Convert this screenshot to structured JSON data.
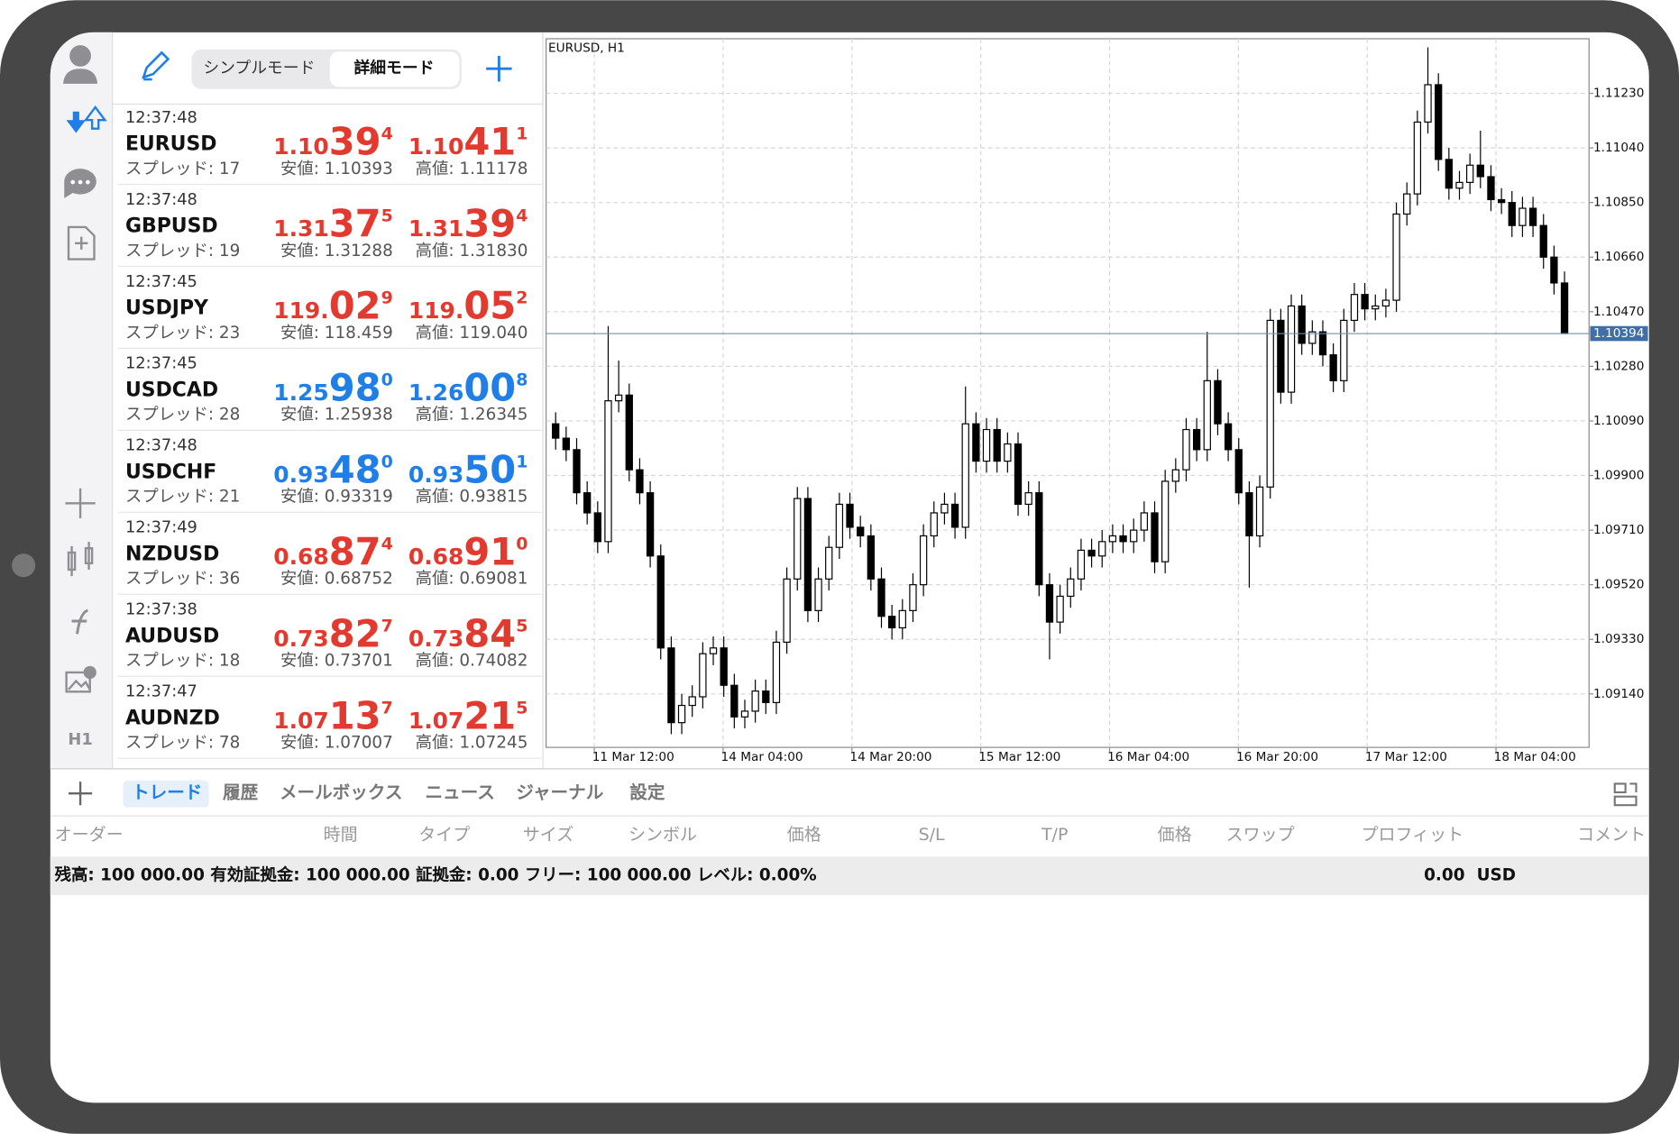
{
  "toolbar": {
    "modes": [
      "シンプルモード",
      "詳細モード"
    ]
  },
  "sidebar": {
    "timeframe": "H1"
  },
  "quotes": [
    {
      "time": "12:37:48",
      "symbol": "EURUSD",
      "spread": "スプレッド: 17",
      "bid": {
        "prefix": "1.10",
        "big": "39",
        "sup": "4"
      },
      "ask": {
        "prefix": "1.10",
        "big": "41",
        "sup": "1"
      },
      "low": "安値: 1.10393",
      "high": "高値: 1.11178",
      "color": "#e23a2e"
    },
    {
      "time": "12:37:48",
      "symbol": "GBPUSD",
      "spread": "スプレッド: 19",
      "bid": {
        "prefix": "1.31",
        "big": "37",
        "sup": "5"
      },
      "ask": {
        "prefix": "1.31",
        "big": "39",
        "sup": "4"
      },
      "low": "安値: 1.31288",
      "high": "高値: 1.31830",
      "color": "#e23a2e"
    },
    {
      "time": "12:37:45",
      "symbol": "USDJPY",
      "spread": "スプレッド: 23",
      "bid": {
        "prefix": "119.",
        "big": "02",
        "sup": "9"
      },
      "ask": {
        "prefix": "119.",
        "big": "05",
        "sup": "2"
      },
      "low": "安値: 118.459",
      "high": "高値: 119.040",
      "color": "#e23a2e"
    },
    {
      "time": "12:37:45",
      "symbol": "USDCAD",
      "spread": "スプレッド: 28",
      "bid": {
        "prefix": "1.25",
        "big": "98",
        "sup": "0"
      },
      "ask": {
        "prefix": "1.26",
        "big": "00",
        "sup": "8"
      },
      "low": "安値: 1.25938",
      "high": "高値: 1.26345",
      "color": "#1f7fe6"
    },
    {
      "time": "12:37:48",
      "symbol": "USDCHF",
      "spread": "スプレッド: 21",
      "bid": {
        "prefix": "0.93",
        "big": "48",
        "sup": "0"
      },
      "ask": {
        "prefix": "0.93",
        "big": "50",
        "sup": "1"
      },
      "low": "安値: 0.93319",
      "high": "高値: 0.93815",
      "color": "#1f7fe6"
    },
    {
      "time": "12:37:49",
      "symbol": "NZDUSD",
      "spread": "スプレッド: 36",
      "bid": {
        "prefix": "0.68",
        "big": "87",
        "sup": "4"
      },
      "ask": {
        "prefix": "0.68",
        "big": "91",
        "sup": "0"
      },
      "low": "安値: 0.68752",
      "high": "高値: 0.69081",
      "color": "#e23a2e"
    },
    {
      "time": "12:37:38",
      "symbol": "AUDUSD",
      "spread": "スプレッド: 18",
      "bid": {
        "prefix": "0.73",
        "big": "82",
        "sup": "7"
      },
      "ask": {
        "prefix": "0.73",
        "big": "84",
        "sup": "5"
      },
      "low": "安値: 0.73701",
      "high": "高値: 0.74082",
      "color": "#e23a2e"
    },
    {
      "time": "12:37:47",
      "symbol": "AUDNZD",
      "spread": "スプレッド: 78",
      "bid": {
        "prefix": "1.07",
        "big": "13",
        "sup": "7"
      },
      "ask": {
        "prefix": "1.07",
        "big": "21",
        "sup": "5"
      },
      "low": "安値: 1.07007",
      "high": "高値: 1.07245",
      "color": "#e23a2e"
    }
  ],
  "chart_data": {
    "type": "candlestick",
    "title": "EURUSD, H1",
    "up_color": "#ffffff",
    "down_color": "#000000",
    "grid": true,
    "ylim": [
      1.08954,
      1.1142
    ],
    "yticks": [
      {
        "value": 1.1123,
        "label": "1.11230"
      },
      {
        "value": 1.1104,
        "label": "1.11040"
      },
      {
        "value": 1.1085,
        "label": "1.10850"
      },
      {
        "value": 1.1066,
        "label": "1.10660"
      },
      {
        "value": 1.1047,
        "label": "1.10470"
      },
      {
        "value": 1.1028,
        "label": "1.10280"
      },
      {
        "value": 1.1009,
        "label": "1.10090"
      },
      {
        "value": 1.099,
        "label": "1.09900"
      },
      {
        "value": 1.0971,
        "label": "1.09710"
      },
      {
        "value": 1.0952,
        "label": "1.09520"
      },
      {
        "value": 1.0933,
        "label": "1.09330"
      },
      {
        "value": 1.0914,
        "label": "1.09140"
      }
    ],
    "xtick_labels": [
      "11 Mar 12:00",
      "14 Mar 04:00",
      "14 Mar 20:00",
      "15 Mar 12:00",
      "16 Mar 04:00",
      "16 Mar 20:00",
      "17 Mar 12:00",
      "18 Mar 04:00"
    ],
    "last_price": 1.10394,
    "ohlc": [
      [
        1.1008,
        1.1012,
        1.0999,
        1.1003
      ],
      [
        1.1003,
        1.1007,
        1.0995,
        1.0999
      ],
      [
        1.0999,
        1.1003,
        1.098,
        1.0984
      ],
      [
        1.0984,
        1.0988,
        1.0973,
        1.0977
      ],
      [
        1.0977,
        1.0981,
        1.0963,
        1.0967
      ],
      [
        1.0967,
        1.1042,
        1.0963,
        1.1016
      ],
      [
        1.1016,
        1.103,
        1.1012,
        1.1018
      ],
      [
        1.1018,
        1.1022,
        1.0988,
        1.0992
      ],
      [
        1.0992,
        1.0996,
        1.098,
        1.0984
      ],
      [
        1.0984,
        1.0988,
        1.0958,
        1.0962
      ],
      [
        1.0962,
        1.0966,
        1.0926,
        1.093
      ],
      [
        1.093,
        1.0934,
        1.09,
        1.0904
      ],
      [
        1.0904,
        1.0914,
        1.09,
        1.091
      ],
      [
        1.091,
        1.0917,
        1.0906,
        1.0913
      ],
      [
        1.0913,
        1.0932,
        1.0909,
        1.0928
      ],
      [
        1.0928,
        1.0934,
        1.0924,
        1.093
      ],
      [
        1.093,
        1.0934,
        1.0913,
        1.0917
      ],
      [
        1.0917,
        1.0921,
        1.0902,
        1.0906
      ],
      [
        1.0906,
        1.0912,
        1.0902,
        1.0908
      ],
      [
        1.0908,
        1.0919,
        1.0904,
        1.0915
      ],
      [
        1.0915,
        1.0919,
        1.0907,
        1.0911
      ],
      [
        1.0911,
        1.0936,
        1.0907,
        1.0932
      ],
      [
        1.0932,
        1.0958,
        1.0928,
        1.0954
      ],
      [
        1.0954,
        1.0986,
        1.095,
        1.0982
      ],
      [
        1.0982,
        1.0986,
        1.0939,
        1.0943
      ],
      [
        1.0943,
        1.0958,
        1.0939,
        1.0954
      ],
      [
        1.0954,
        1.0969,
        1.095,
        1.0965
      ],
      [
        1.0965,
        1.0984,
        1.0961,
        1.098
      ],
      [
        1.098,
        1.0984,
        1.0968,
        1.0972
      ],
      [
        1.0972,
        1.0976,
        1.0965,
        1.0969
      ],
      [
        1.0969,
        1.0973,
        1.095,
        1.0954
      ],
      [
        1.0954,
        1.0958,
        1.0937,
        1.0941
      ],
      [
        1.0941,
        1.0945,
        1.0933,
        1.0937
      ],
      [
        1.0937,
        1.0947,
        1.0933,
        1.0943
      ],
      [
        1.0943,
        1.0956,
        1.0939,
        1.0952
      ],
      [
        1.0952,
        1.0973,
        1.0948,
        1.0969
      ],
      [
        1.0969,
        1.0981,
        1.0965,
        1.0977
      ],
      [
        1.0977,
        1.0984,
        1.0973,
        1.098
      ],
      [
        1.098,
        1.0984,
        1.0968,
        1.0972
      ],
      [
        1.0972,
        1.1021,
        1.0968,
        1.1008
      ],
      [
        1.1008,
        1.1012,
        1.0991,
        1.0995
      ],
      [
        1.0995,
        1.101,
        1.0991,
        1.1006
      ],
      [
        1.1006,
        1.101,
        1.0991,
        1.0995
      ],
      [
        1.0995,
        1.1005,
        1.0991,
        1.1001
      ],
      [
        1.1001,
        1.1005,
        1.0976,
        1.098
      ],
      [
        1.098,
        1.0988,
        1.0976,
        1.0984
      ],
      [
        1.0984,
        1.0988,
        1.0948,
        1.0952
      ],
      [
        1.0952,
        1.0956,
        1.0926,
        1.0939
      ],
      [
        1.0939,
        1.0952,
        1.0935,
        1.0948
      ],
      [
        1.0948,
        1.0958,
        1.0944,
        1.0954
      ],
      [
        1.0954,
        1.0968,
        1.095,
        1.0964
      ],
      [
        1.0964,
        1.0968,
        1.0958,
        1.0962
      ],
      [
        1.0962,
        1.0971,
        1.0958,
        1.0967
      ],
      [
        1.0967,
        1.0973,
        1.0963,
        1.0969
      ],
      [
        1.0969,
        1.0973,
        1.0963,
        1.0967
      ],
      [
        1.0967,
        1.0975,
        1.0963,
        1.0971
      ],
      [
        1.0971,
        1.0981,
        1.0967,
        1.0977
      ],
      [
        1.0977,
        1.0981,
        1.0956,
        1.096
      ],
      [
        1.096,
        1.0992,
        1.0956,
        1.0988
      ],
      [
        1.0988,
        1.0996,
        1.0984,
        1.0992
      ],
      [
        1.0992,
        1.101,
        1.0988,
        1.1006
      ],
      [
        1.1006,
        1.101,
        1.0995,
        1.0999
      ],
      [
        1.0999,
        1.104,
        1.0995,
        1.1023
      ],
      [
        1.1023,
        1.1027,
        1.1004,
        1.1008
      ],
      [
        1.1008,
        1.1012,
        1.0995,
        1.0999
      ],
      [
        1.0999,
        1.1003,
        1.098,
        1.0984
      ],
      [
        1.0984,
        1.0988,
        1.0951,
        1.0969
      ],
      [
        1.0969,
        1.099,
        1.0965,
        1.0986
      ],
      [
        1.0986,
        1.1048,
        1.0982,
        1.1044
      ],
      [
        1.1044,
        1.1048,
        1.1015,
        1.1019
      ],
      [
        1.1019,
        1.1053,
        1.1015,
        1.1049
      ],
      [
        1.1049,
        1.1053,
        1.1032,
        1.1036
      ],
      [
        1.1036,
        1.1044,
        1.1032,
        1.104
      ],
      [
        1.104,
        1.1044,
        1.1028,
        1.1032
      ],
      [
        1.1032,
        1.1036,
        1.1019,
        1.1023
      ],
      [
        1.1023,
        1.1048,
        1.1019,
        1.1044
      ],
      [
        1.1044,
        1.1057,
        1.104,
        1.1053
      ],
      [
        1.1053,
        1.1057,
        1.1044,
        1.1048
      ],
      [
        1.1048,
        1.1053,
        1.1044,
        1.1049
      ],
      [
        1.1049,
        1.1055,
        1.1045,
        1.1051
      ],
      [
        1.1051,
        1.1085,
        1.1047,
        1.1081
      ],
      [
        1.1081,
        1.1092,
        1.1077,
        1.1088
      ],
      [
        1.1088,
        1.1117,
        1.1084,
        1.1113
      ],
      [
        1.1113,
        1.1139,
        1.1109,
        1.1126
      ],
      [
        1.1126,
        1.113,
        1.1096,
        1.11
      ],
      [
        1.11,
        1.1104,
        1.1086,
        1.109
      ],
      [
        1.109,
        1.1096,
        1.1086,
        1.1092
      ],
      [
        1.1092,
        1.1102,
        1.1088,
        1.1098
      ],
      [
        1.1098,
        1.111,
        1.109,
        1.1094
      ],
      [
        1.1094,
        1.1098,
        1.1082,
        1.1086
      ],
      [
        1.1086,
        1.109,
        1.1081,
        1.1085
      ],
      [
        1.1085,
        1.1089,
        1.1073,
        1.1077
      ],
      [
        1.1077,
        1.1087,
        1.1073,
        1.1083
      ],
      [
        1.1083,
        1.1087,
        1.1073,
        1.1077
      ],
      [
        1.1077,
        1.1081,
        1.1062,
        1.1066
      ],
      [
        1.1066,
        1.107,
        1.1053,
        1.1057
      ],
      [
        1.1057,
        1.1061,
        1.10394,
        1.10394
      ]
    ]
  },
  "tabs": [
    "トレード",
    "履歴",
    "メールボックス",
    "ニュース",
    "ジャーナル",
    "設定"
  ],
  "columns": [
    "オーダー",
    "時間",
    "タイプ",
    "サイズ",
    "シンボル",
    "価格",
    "S/L",
    "T/P",
    "価格",
    "スワップ",
    "プロフィット",
    "コメント"
  ],
  "account": {
    "summary": "残高: 100 000.00 有効証拠金: 100 000.00 証拠金: 0.00 フリー: 100 000.00 レベル: 0.00%",
    "profit": "0.00",
    "currency": "USD"
  }
}
